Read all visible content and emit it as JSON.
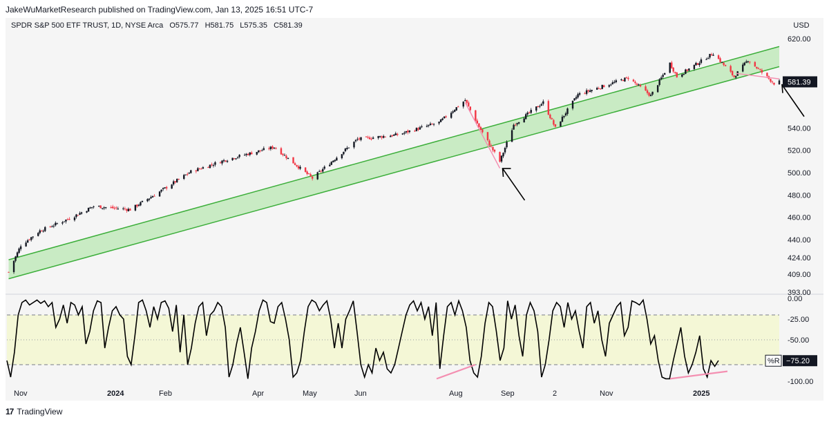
{
  "header": {
    "attribution": "JakeWuMarketResearch published on TradingView.com, Jan 13, 2025 16:51 UTC-7",
    "symbol": "SPDR S&P 500 ETF TRUST, 1D, NYSE Arca",
    "open": "O575.77",
    "high": "H581.75",
    "low": "L575.35",
    "close": "C581.39",
    "currency": "USD"
  },
  "footer": {
    "brand": "TradingView"
  },
  "colors": {
    "up": "#131722",
    "down": "#f23645",
    "channel_line": "#3cae3a",
    "channel_fill": "#b9e7b3",
    "wr_band": "#f4f7d6",
    "annotation_pink": "#f48fb1",
    "arrow": "#000000"
  },
  "chart_data": [
    {
      "type": "candlestick",
      "title": "SPDR S&P 500 ETF TRUST, 1D, NYSE Arca",
      "ylabel": "USD",
      "ylim": [
        393,
        625
      ],
      "y_ticks": [
        "620.00",
        "540.00",
        "520.00",
        "500.00",
        "480.00",
        "460.00",
        "440.00",
        "424.00",
        "409.00",
        "393.00"
      ],
      "last_price_label": "581.39",
      "x_labels": [
        "Nov",
        "2024",
        "Feb",
        "Apr",
        "May",
        "Jun",
        "Aug",
        "Sep",
        "2",
        "Nov",
        "2025"
      ],
      "x_labels_bold": [
        "2024",
        "2025"
      ],
      "x_range": [
        "2023-10-26",
        "2025-01-13"
      ],
      "series": [
        {
          "name": "price",
          "anchors": [
            [
              "2023-10-27",
              411
            ],
            [
              "2023-11-03",
              435
            ],
            [
              "2023-11-14",
              448
            ],
            [
              "2023-12-01",
              459
            ],
            [
              "2023-12-15",
              470
            ],
            [
              "2024-01-05",
              467
            ],
            [
              "2024-01-22",
              483
            ],
            [
              "2024-02-09",
              501
            ],
            [
              "2024-03-01",
              512
            ],
            [
              "2024-03-28",
              523
            ],
            [
              "2024-04-19",
              495
            ],
            [
              "2024-05-15",
              530
            ],
            [
              "2024-06-07",
              534
            ],
            [
              "2024-07-01",
              545
            ],
            [
              "2024-07-16",
              565
            ],
            [
              "2024-07-24",
              541
            ],
            [
              "2024-08-05",
              510
            ],
            [
              "2024-08-13",
              543
            ],
            [
              "2024-08-30",
              563
            ],
            [
              "2024-09-06",
              540
            ],
            [
              "2024-09-19",
              570
            ],
            [
              "2024-10-18",
              585
            ],
            [
              "2024-10-31",
              569
            ],
            [
              "2024-11-11",
              598
            ],
            [
              "2024-11-15",
              586
            ],
            [
              "2024-12-06",
              607
            ],
            [
              "2024-12-18",
              586
            ],
            [
              "2024-12-26",
              601
            ],
            [
              "2025-01-10",
              580
            ],
            [
              "2025-01-13",
              581.39
            ]
          ]
        }
      ],
      "channel": {
        "upper": [
          [
            "2023-10-27",
            422
          ],
          [
            "2025-01-13",
            613
          ]
        ],
        "lower": [
          [
            "2023-10-27",
            405
          ],
          [
            "2025-01-13",
            595
          ]
        ]
      },
      "annotations": [
        {
          "type": "trendline",
          "from": [
            "2024-07-16",
            563
          ],
          "to": [
            "2024-08-05",
            504
          ]
        },
        {
          "type": "trendline",
          "from": [
            "2024-12-19",
            589
          ],
          "to": [
            "2025-01-13",
            584
          ]
        },
        {
          "type": "arrow",
          "pointing_to": [
            "2024-08-05",
            505
          ]
        },
        {
          "type": "arrow",
          "pointing_to": [
            "2025-01-13",
            580
          ]
        }
      ]
    },
    {
      "type": "line",
      "title": "%R",
      "ylim": [
        -100,
        0
      ],
      "y_ticks": [
        "0.00",
        "-25.00",
        "-50.00",
        "-100.00"
      ],
      "bands": [
        -20,
        -80
      ],
      "midline": -50,
      "last_value_label": "−75.20",
      "series": [
        {
          "name": "%R",
          "values": [
            -75,
            -95,
            -65,
            -20,
            -5,
            -2,
            -8,
            -5,
            -2,
            -6,
            -3,
            -10,
            -5,
            -35,
            -25,
            -8,
            -30,
            -5,
            -8,
            -20,
            -10,
            -55,
            -40,
            -15,
            -3,
            -5,
            -60,
            -35,
            -15,
            -10,
            -20,
            -25,
            -70,
            -80,
            -45,
            -5,
            -2,
            -15,
            -35,
            -10,
            -25,
            -5,
            -3,
            -12,
            -40,
            -8,
            -65,
            -20,
            -80,
            -60,
            -30,
            -10,
            -5,
            -45,
            -20,
            -15,
            -5,
            -10,
            -35,
            -95,
            -80,
            -55,
            -35,
            -65,
            -97,
            -60,
            -40,
            -15,
            -2,
            -5,
            -28,
            -30,
            -10,
            -5,
            -25,
            -50,
            -95,
            -90,
            -75,
            -40,
            -10,
            -2,
            -5,
            -15,
            -8,
            -3,
            -25,
            -60,
            -30,
            -60,
            -25,
            -15,
            -3,
            -40,
            -80,
            -95,
            -80,
            -90,
            -60,
            -75,
            -65,
            -85,
            -90,
            -80,
            -60,
            -40,
            -20,
            -8,
            -3,
            -15,
            -5,
            -25,
            -10,
            -45,
            -5,
            -85,
            -45,
            -10,
            -5,
            -20,
            -3,
            -15,
            -35,
            -75,
            -90,
            -95,
            -70,
            -30,
            -5,
            -10,
            -40,
            -75,
            -60,
            -3,
            -25,
            -8,
            -45,
            -70,
            -20,
            -5,
            -15,
            -40,
            -95,
            -80,
            -50,
            -15,
            -5,
            -10,
            -35,
            -5,
            -25,
            -15,
            -40,
            -60,
            -10,
            -5,
            -30,
            -15,
            -50,
            -70,
            -30,
            -20,
            -10,
            -5,
            -45,
            -35,
            -3,
            -5,
            -8,
            -2,
            -25,
            -55,
            -45,
            -75,
            -95,
            -97,
            -97,
            -75,
            -55,
            -35,
            -70,
            -90,
            -80,
            -65,
            -45,
            -85,
            -95,
            -75,
            -82,
            -75
          ]
        }
      ]
    }
  ]
}
